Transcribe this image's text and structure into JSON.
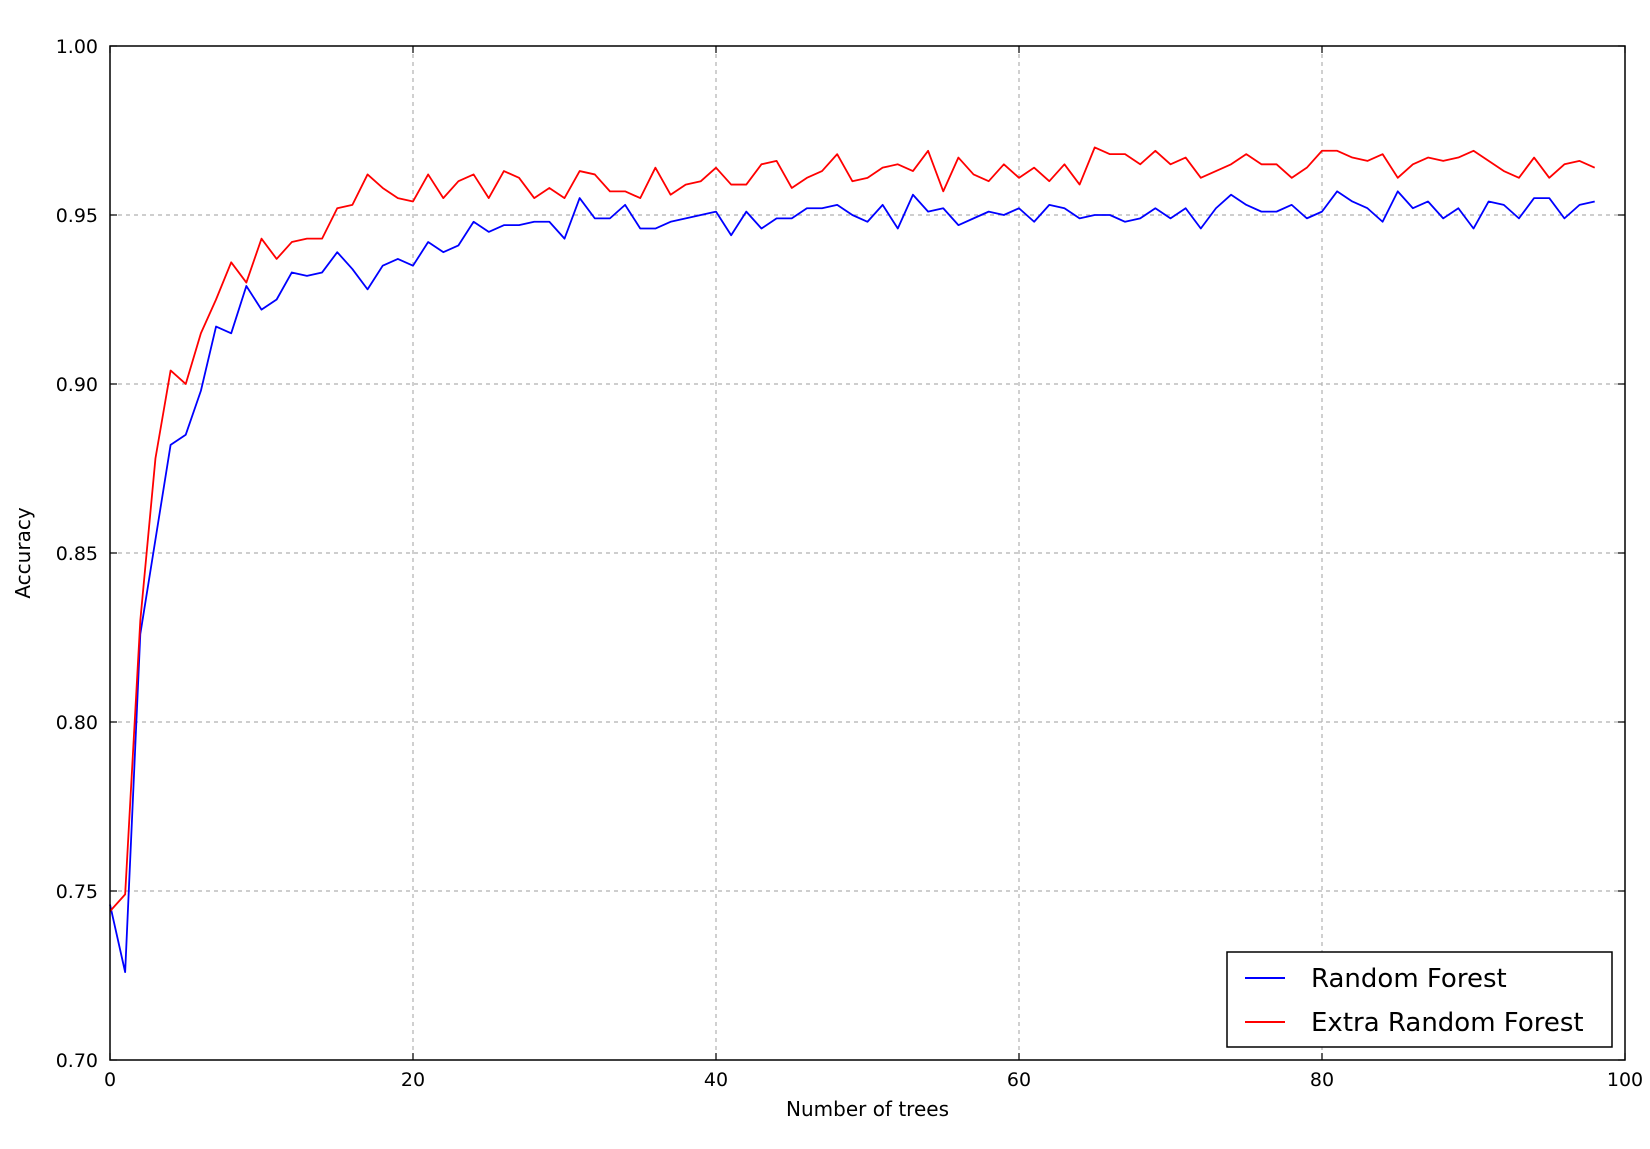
{
  "chart_data": {
    "type": "line",
    "title": "",
    "xlabel": "Number of trees",
    "ylabel": "Accuracy",
    "xlim": [
      0,
      100
    ],
    "ylim": [
      0.7,
      1.0
    ],
    "xticks": [
      0,
      20,
      40,
      60,
      80,
      100
    ],
    "yticks": [
      0.7,
      0.75,
      0.8,
      0.85,
      0.9,
      0.95,
      1.0
    ],
    "xtick_labels": [
      "0",
      "20",
      "40",
      "60",
      "80",
      "100"
    ],
    "ytick_labels": [
      "0.70",
      "0.75",
      "0.80",
      "0.85",
      "0.90",
      "0.95",
      "1.00"
    ],
    "grid": true,
    "legend_position": "lower-right",
    "series": [
      {
        "name": "Random Forest",
        "color": "#0000ff",
        "x_start": 0,
        "x_step": 1,
        "values": [
          0.746,
          0.726,
          0.826,
          0.854,
          0.882,
          0.885,
          0.898,
          0.917,
          0.915,
          0.929,
          0.922,
          0.925,
          0.933,
          0.932,
          0.933,
          0.939,
          0.934,
          0.928,
          0.935,
          0.937,
          0.935,
          0.942,
          0.939,
          0.941,
          0.948,
          0.945,
          0.947,
          0.947,
          0.948,
          0.948,
          0.943,
          0.955,
          0.949,
          0.949,
          0.953,
          0.946,
          0.946,
          0.948,
          0.949,
          0.95,
          0.951,
          0.944,
          0.951,
          0.946,
          0.949,
          0.949,
          0.952,
          0.952,
          0.953,
          0.95,
          0.948,
          0.953,
          0.946,
          0.956,
          0.951,
          0.952,
          0.947,
          0.949,
          0.951,
          0.95,
          0.952,
          0.948,
          0.953,
          0.952,
          0.949,
          0.95,
          0.95,
          0.948,
          0.949,
          0.952,
          0.949,
          0.952,
          0.946,
          0.952,
          0.956,
          0.953,
          0.951,
          0.951,
          0.953,
          0.949,
          0.951,
          0.957,
          0.954,
          0.952,
          0.948,
          0.957,
          0.952,
          0.954,
          0.949,
          0.952,
          0.946,
          0.954,
          0.953,
          0.949,
          0.955,
          0.955,
          0.949,
          0.953,
          0.954
        ]
      },
      {
        "name": "Extra Random Forest",
        "color": "#ff0000",
        "x_start": 0,
        "x_step": 1,
        "values": [
          0.744,
          0.749,
          0.83,
          0.878,
          0.904,
          0.9,
          0.915,
          0.925,
          0.936,
          0.93,
          0.943,
          0.937,
          0.942,
          0.943,
          0.943,
          0.952,
          0.953,
          0.962,
          0.958,
          0.955,
          0.954,
          0.962,
          0.955,
          0.96,
          0.962,
          0.955,
          0.963,
          0.961,
          0.955,
          0.958,
          0.955,
          0.963,
          0.962,
          0.957,
          0.957,
          0.955,
          0.964,
          0.956,
          0.959,
          0.96,
          0.964,
          0.959,
          0.959,
          0.965,
          0.966,
          0.958,
          0.961,
          0.963,
          0.968,
          0.96,
          0.961,
          0.964,
          0.965,
          0.963,
          0.969,
          0.957,
          0.967,
          0.962,
          0.96,
          0.965,
          0.961,
          0.964,
          0.96,
          0.965,
          0.959,
          0.97,
          0.968,
          0.968,
          0.965,
          0.969,
          0.965,
          0.967,
          0.961,
          0.963,
          0.965,
          0.968,
          0.965,
          0.965,
          0.961,
          0.964,
          0.969,
          0.969,
          0.967,
          0.966,
          0.968,
          0.961,
          0.965,
          0.967,
          0.966,
          0.967,
          0.969,
          0.966,
          0.963,
          0.961,
          0.967,
          0.961,
          0.965,
          0.966,
          0.964
        ]
      }
    ]
  }
}
